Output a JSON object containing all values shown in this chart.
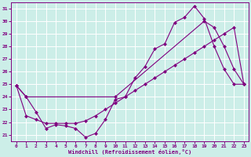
{
  "xlabel": "Windchill (Refroidissement éolien,°C)",
  "bg_color": "#cceee8",
  "grid_color": "#ffffff",
  "line_color": "#800080",
  "xlim": [
    -0.5,
    23.5
  ],
  "ylim": [
    20.5,
    31.5
  ],
  "yticks": [
    21,
    22,
    23,
    24,
    25,
    26,
    27,
    28,
    29,
    30,
    31
  ],
  "xticks": [
    0,
    1,
    2,
    3,
    4,
    5,
    6,
    7,
    8,
    9,
    10,
    11,
    12,
    13,
    14,
    15,
    16,
    17,
    18,
    19,
    20,
    21,
    22,
    23
  ],
  "line1_x": [
    0,
    1,
    2,
    3,
    4,
    5,
    6,
    7,
    8,
    9,
    10,
    11,
    12,
    13,
    14,
    15,
    16,
    17,
    18,
    19,
    20,
    21,
    22,
    23
  ],
  "line1_y": [
    24.9,
    24.0,
    22.8,
    21.5,
    21.8,
    21.7,
    21.5,
    20.8,
    21.1,
    22.2,
    23.8,
    24.0,
    25.5,
    26.4,
    27.8,
    28.2,
    29.9,
    30.3,
    31.2,
    30.2,
    28.0,
    26.2,
    25.0,
    25.0
  ],
  "line2_x": [
    0,
    1,
    10,
    19,
    20,
    21,
    22,
    23
  ],
  "line2_y": [
    24.9,
    24.0,
    24.0,
    30.0,
    29.5,
    28.0,
    26.2,
    25.0
  ],
  "line3_x": [
    0,
    1,
    2,
    3,
    4,
    5,
    6,
    7,
    8,
    9,
    10,
    11,
    12,
    13,
    14,
    15,
    16,
    17,
    18,
    19,
    20,
    21,
    22,
    23
  ],
  "line3_y": [
    24.9,
    22.5,
    22.2,
    21.9,
    21.9,
    21.9,
    21.9,
    22.1,
    22.5,
    23.0,
    23.5,
    24.0,
    24.5,
    25.0,
    25.5,
    26.0,
    26.5,
    27.0,
    27.5,
    28.0,
    28.5,
    29.0,
    29.5,
    25.0
  ]
}
